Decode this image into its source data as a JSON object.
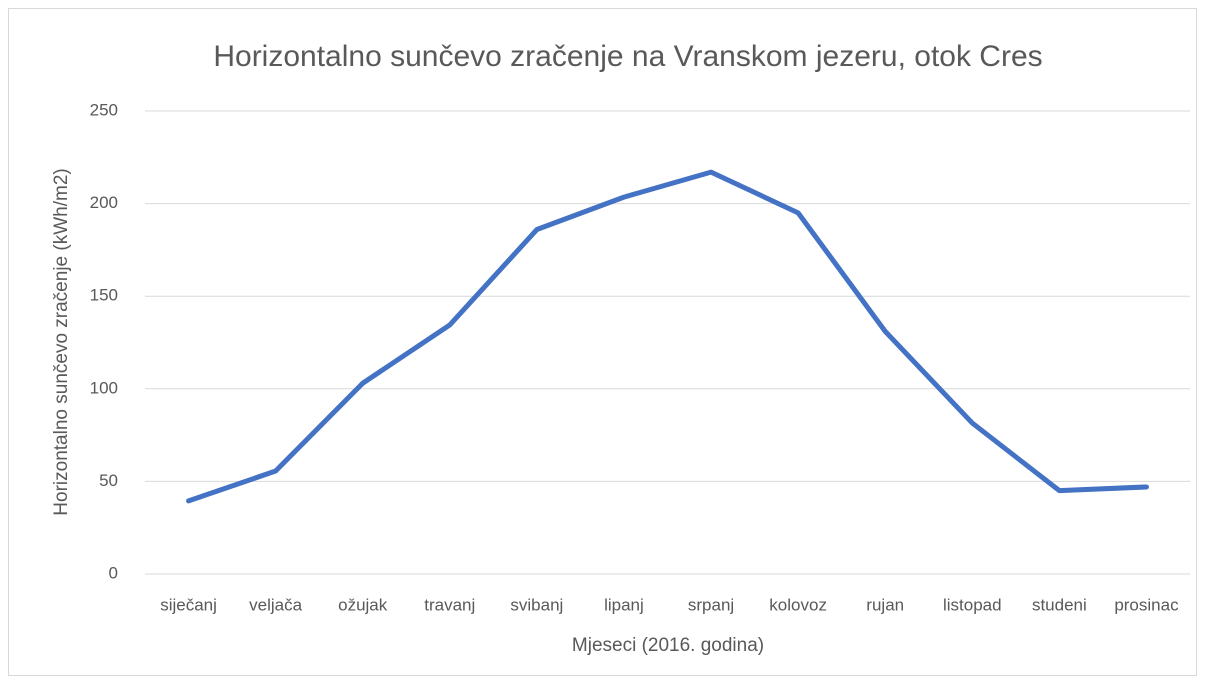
{
  "chart_data": {
    "type": "line",
    "title": "Horizontalno sunčevo zračenje na Vranskom jezeru, otok Cres",
    "x_label": "Mjeseci (2016. godina)",
    "y_label": "Horizontalno sunčevo zračenje (kWh/m2)",
    "categories": [
      "siječanj",
      "veljača",
      "ožujak",
      "travanj",
      "svibanj",
      "lipanj",
      "srpanj",
      "kolovoz",
      "rujan",
      "listopad",
      "studeni",
      "prosinac"
    ],
    "series": [
      {
        "name": "Horizontalno sunčevo zračenje",
        "color": "#4472c4",
        "values": [
          39.5,
          55.6,
          103,
          134.5,
          186,
          203.5,
          217,
          195,
          131,
          81.5,
          45,
          47
        ]
      }
    ],
    "ylim": [
      0,
      250
    ],
    "yticks": [
      0,
      50,
      100,
      150,
      200,
      250
    ],
    "grid": true
  }
}
